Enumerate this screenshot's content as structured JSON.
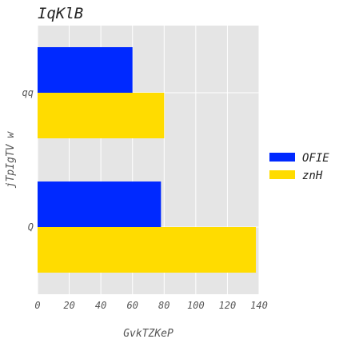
{
  "chart_data": {
    "type": "bar",
    "orientation": "horizontal",
    "title": "IqKlB",
    "xlabel": "GvkTZKeP",
    "ylabel": "jTpIgTV w",
    "categories": [
      "qq",
      "Q"
    ],
    "series": [
      {
        "name": "OFIE",
        "color": "#0029ff",
        "values": [
          60,
          78
        ]
      },
      {
        "name": "znH",
        "color": "#ffdc00",
        "values": [
          80,
          138
        ]
      }
    ],
    "xlim": [
      0,
      140
    ],
    "xticks": [
      0,
      20,
      40,
      60,
      80,
      100,
      120,
      140
    ],
    "grid": true,
    "legend_position": "right"
  }
}
